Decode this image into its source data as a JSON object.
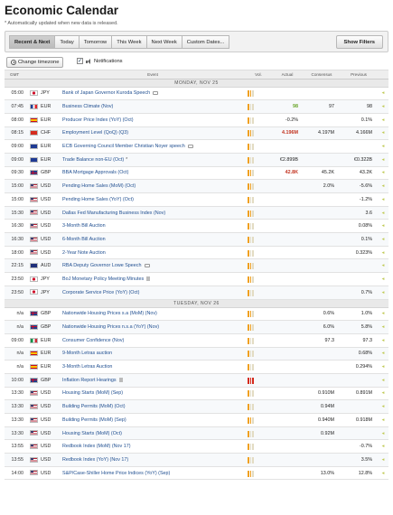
{
  "title": "Economic Calendar",
  "note": "* Automatically updated when new data is released.",
  "tabs": [
    "Recent & Next",
    "Today",
    "Tomorrow",
    "This Week",
    "Next Week",
    "Custom Dates..."
  ],
  "show_filters": "Show Filters",
  "change_timezone": "Change timezone",
  "notifications": "Notifications",
  "columns": [
    "GMT",
    "Event",
    "Vol.",
    "Actual",
    "Consensus",
    "Previous"
  ],
  "colors": {
    "volatility_low": "#f0a020",
    "volatility_high": "#d42a1d",
    "actual_better": "#6aa62a",
    "actual_worse": "#c2331f",
    "event_link": "#1f4e90"
  },
  "days": [
    {
      "label": "MONDAY, NOV 25",
      "rows": [
        {
          "time": "05:00",
          "flag": "japan",
          "cur": "JPY",
          "event": "Bank of Japan Governor Kuroda Speech",
          "icon": "speech",
          "vol": 2,
          "actual": "",
          "actual_state": "",
          "consensus": "",
          "previous": ""
        },
        {
          "time": "07:45",
          "flag": "france",
          "cur": "EUR",
          "event": "Business Climate (Nov)",
          "icon": "",
          "vol": 1,
          "actual": "98",
          "actual_state": "pos",
          "consensus": "97",
          "previous": "98"
        },
        {
          "time": "08:00",
          "flag": "spain",
          "cur": "EUR",
          "event": "Producer Price Index (YoY) (Oct)",
          "icon": "",
          "vol": 1,
          "actual": "-0.2%",
          "actual_state": "",
          "consensus": "",
          "previous": "0.1%"
        },
        {
          "time": "08:15",
          "flag": "switzerland",
          "cur": "CHF",
          "event": "Employment Level (QoQ) (Q3)",
          "icon": "",
          "vol": 2,
          "actual": "4.196M",
          "actual_state": "neg",
          "consensus": "4.197M",
          "previous": "4.166M"
        },
        {
          "time": "09:00",
          "flag": "eu",
          "cur": "EUR",
          "event": "ECB Governing Council Member Christian Noyer speech",
          "icon": "speech",
          "vol": 1,
          "actual": "",
          "actual_state": "",
          "consensus": "",
          "previous": ""
        },
        {
          "time": "09:00",
          "flag": "eu",
          "cur": "EUR",
          "event": "Trade Balance non-EU (Oct)",
          "icon": "star",
          "vol": 1,
          "actual": "€2.899B",
          "actual_state": "",
          "consensus": "",
          "previous": "€0.322B"
        },
        {
          "time": "09:30",
          "flag": "uk",
          "cur": "GBP",
          "event": "BBA Mortgage Approvals (Oct)",
          "icon": "",
          "vol": 2,
          "actual": "42.8K",
          "actual_state": "neg",
          "consensus": "45.2K",
          "previous": "43.2K"
        },
        {
          "time": "15:00",
          "flag": "us",
          "cur": "USD",
          "event": "Pending Home Sales (MoM) (Oct)",
          "icon": "",
          "vol": 2,
          "actual": "",
          "actual_state": "",
          "consensus": "2.0%",
          "previous": "-5.6%"
        },
        {
          "time": "15:00",
          "flag": "us",
          "cur": "USD",
          "event": "Pending Home Sales (YoY) (Oct)",
          "icon": "",
          "vol": 1,
          "actual": "",
          "actual_state": "",
          "consensus": "",
          "previous": "-1.2%"
        },
        {
          "time": "15:30",
          "flag": "us",
          "cur": "USD",
          "event": "Dallas Fed Manufacturing Business Index (Nov)",
          "icon": "",
          "vol": 2,
          "actual": "",
          "actual_state": "",
          "consensus": "",
          "previous": "3.6"
        },
        {
          "time": "16:30",
          "flag": "us",
          "cur": "USD",
          "event": "3-Month Bill Auction",
          "icon": "",
          "vol": 1,
          "actual": "",
          "actual_state": "",
          "consensus": "",
          "previous": "0.08%"
        },
        {
          "time": "16:30",
          "flag": "us",
          "cur": "USD",
          "event": "6-Month Bill Auction",
          "icon": "",
          "vol": 1,
          "actual": "",
          "actual_state": "",
          "consensus": "",
          "previous": "0.1%"
        },
        {
          "time": "18:00",
          "flag": "us",
          "cur": "USD",
          "event": "2-Year Note Auction",
          "icon": "",
          "vol": 1,
          "actual": "",
          "actual_state": "",
          "consensus": "",
          "previous": "0.323%"
        },
        {
          "time": "22:15",
          "flag": "australia",
          "cur": "AUD",
          "event": "RBA Deputy Governor Lowe Speech",
          "icon": "speech",
          "vol": 2,
          "actual": "",
          "actual_state": "",
          "consensus": "",
          "previous": ""
        },
        {
          "time": "23:50",
          "flag": "japan",
          "cur": "JPY",
          "event": "BoJ Monetary Policy Meeting Minutes",
          "icon": "doc",
          "vol": 2,
          "actual": "",
          "actual_state": "",
          "consensus": "",
          "previous": ""
        },
        {
          "time": "23:50",
          "flag": "japan",
          "cur": "JPY",
          "event": "Corporate Service Price (YoY) (Oct)",
          "icon": "",
          "vol": 1,
          "actual": "",
          "actual_state": "",
          "consensus": "",
          "previous": "0.7%"
        }
      ]
    },
    {
      "label": "TUESDAY, NOV 26",
      "rows": [
        {
          "time": "n/a",
          "flag": "uk",
          "cur": "GBP",
          "event": "Nationwide Housing Prices s.a (MoM) (Nov)",
          "icon": "",
          "vol": 2,
          "actual": "",
          "actual_state": "",
          "consensus": "0.6%",
          "previous": "1.0%"
        },
        {
          "time": "n/a",
          "flag": "uk",
          "cur": "GBP",
          "event": "Nationwide Housing Prices n.s.a (YoY) (Nov)",
          "icon": "",
          "vol": 2,
          "actual": "",
          "actual_state": "",
          "consensus": "6.0%",
          "previous": "5.8%"
        },
        {
          "time": "09:00",
          "flag": "italy",
          "cur": "EUR",
          "event": "Consumer Confidence (Nov)",
          "icon": "",
          "vol": 1,
          "actual": "",
          "actual_state": "",
          "consensus": "97.3",
          "previous": "97.3"
        },
        {
          "time": "n/a",
          "flag": "spain",
          "cur": "EUR",
          "event": "9-Month Letras auction",
          "icon": "",
          "vol": 1,
          "actual": "",
          "actual_state": "",
          "consensus": "",
          "previous": "0.68%"
        },
        {
          "time": "n/a",
          "flag": "spain",
          "cur": "EUR",
          "event": "3-Month Letras Auction",
          "icon": "",
          "vol": 1,
          "actual": "",
          "actual_state": "",
          "consensus": "",
          "previous": "0.294%"
        },
        {
          "time": "10:00",
          "flag": "uk",
          "cur": "GBP",
          "event": "Inflation Report Hearings",
          "icon": "doc",
          "vol": 3,
          "actual": "",
          "actual_state": "",
          "consensus": "",
          "previous": ""
        },
        {
          "time": "13:30",
          "flag": "us",
          "cur": "USD",
          "event": "Housing Starts (MoM) (Sep)",
          "icon": "",
          "vol": 1,
          "actual": "",
          "actual_state": "",
          "consensus": "0.910M",
          "previous": "0.891M"
        },
        {
          "time": "13:30",
          "flag": "us",
          "cur": "USD",
          "event": "Building Permits (MoM) (Oct)",
          "icon": "",
          "vol": 1,
          "actual": "",
          "actual_state": "",
          "consensus": "0.94M",
          "previous": ""
        },
        {
          "time": "13:30",
          "flag": "us",
          "cur": "USD",
          "event": "Building Permits (MoM) (Sep)",
          "icon": "",
          "vol": 2,
          "actual": "",
          "actual_state": "",
          "consensus": "0.940M",
          "previous": "0.918M"
        },
        {
          "time": "13:30",
          "flag": "us",
          "cur": "USD",
          "event": "Housing Starts (MoM) (Oct)",
          "icon": "",
          "vol": 1,
          "actual": "",
          "actual_state": "",
          "consensus": "0.92M",
          "previous": ""
        },
        {
          "time": "13:55",
          "flag": "us",
          "cur": "USD",
          "event": "Redbook Index (MoM) (Nov 17)",
          "icon": "",
          "vol": 1,
          "actual": "",
          "actual_state": "",
          "consensus": "",
          "previous": "-0.7%"
        },
        {
          "time": "13:55",
          "flag": "us",
          "cur": "USD",
          "event": "Redbook Index (YoY) (Nov 17)",
          "icon": "",
          "vol": 1,
          "actual": "",
          "actual_state": "",
          "consensus": "",
          "previous": "3.5%"
        },
        {
          "time": "14:00",
          "flag": "us",
          "cur": "USD",
          "event": "S&P/Case-Shiller Home Price Indices (YoY) (Sep)",
          "icon": "",
          "vol": 2,
          "actual": "",
          "actual_state": "",
          "consensus": "13.0%",
          "previous": "12.8%"
        }
      ]
    }
  ]
}
